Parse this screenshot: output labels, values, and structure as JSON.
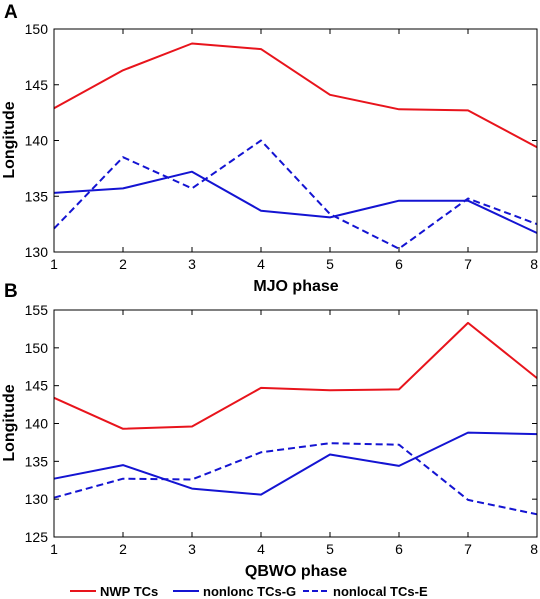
{
  "colors": {
    "red": "#e8141c",
    "blue": "#1414d2"
  },
  "legend": {
    "items": [
      {
        "label": "NWP TCs",
        "color": "#e8141c",
        "dash": false
      },
      {
        "label": "nonlonc TCs-G",
        "color": "#1414d2",
        "dash": false
      },
      {
        "label": "nonlocal TCs-E",
        "color": "#1414d2",
        "dash": true
      }
    ]
  },
  "chart_data": [
    {
      "panel_label": "A",
      "type": "line",
      "xlabel": "MJO phase",
      "ylabel": "Longitude",
      "x": [
        1,
        2,
        3,
        4,
        5,
        6,
        7,
        8
      ],
      "xlim": [
        1,
        8
      ],
      "ylim": [
        130,
        150
      ],
      "yticks": [
        130,
        135,
        140,
        145,
        150
      ],
      "grid": false,
      "series": [
        {
          "name": "NWP TCs",
          "color": "#e8141c",
          "dash": false,
          "values": [
            142.9,
            146.3,
            148.7,
            148.2,
            144.1,
            142.8,
            142.7,
            139.4
          ]
        },
        {
          "name": "nonlonc TCs-G",
          "color": "#1414d2",
          "dash": false,
          "values": [
            135.3,
            135.7,
            137.2,
            133.7,
            133.1,
            134.6,
            134.6,
            131.7
          ]
        },
        {
          "name": "nonlocal TCs-E",
          "color": "#1414d2",
          "dash": true,
          "values": [
            132.1,
            138.5,
            135.7,
            140.0,
            133.4,
            130.3,
            134.8,
            132.5
          ]
        }
      ]
    },
    {
      "panel_label": "B",
      "type": "line",
      "xlabel": "QBWO phase",
      "ylabel": "Longitude",
      "x": [
        1,
        2,
        3,
        4,
        5,
        6,
        7,
        8
      ],
      "xlim": [
        1,
        8
      ],
      "ylim": [
        125,
        155
      ],
      "yticks": [
        125,
        130,
        135,
        140,
        145,
        150,
        155
      ],
      "grid": false,
      "series": [
        {
          "name": "NWP TCs",
          "color": "#e8141c",
          "dash": false,
          "values": [
            143.4,
            139.3,
            139.6,
            144.7,
            144.4,
            144.5,
            153.3,
            146.0
          ]
        },
        {
          "name": "nonlonc TCs-G",
          "color": "#1414d2",
          "dash": false,
          "values": [
            132.7,
            134.5,
            131.4,
            130.6,
            135.9,
            134.4,
            138.8,
            138.6
          ]
        },
        {
          "name": "nonlocal TCs-E",
          "color": "#1414d2",
          "dash": true,
          "values": [
            130.2,
            132.7,
            132.6,
            136.2,
            137.4,
            137.2,
            129.9,
            128.0
          ]
        }
      ]
    }
  ]
}
